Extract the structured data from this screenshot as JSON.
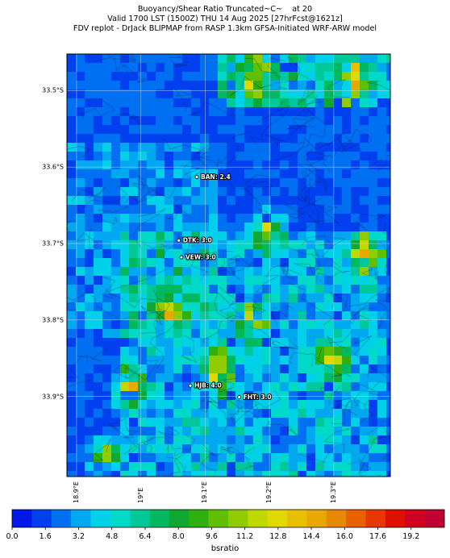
{
  "title": {
    "line1": "Buoyancy/Shear Ratio Truncated~C~    at 20",
    "line2": "Valid 1700 LST (1500Z) THU 14 Aug 2025 [27hrFcst@1621z]",
    "line3": "FDV replot - DrJack BLIPMAP from RASP 1.3km GFSA-Initiated WRF-ARW model"
  },
  "latitude_labels": [
    "33.5°S",
    "33.6°S",
    "33.7°S",
    "33.8°S",
    "33.9°S"
  ],
  "longitude_labels": [
    "18.9°E",
    "19°E",
    "19.1°E",
    "19.2°E",
    "19.3°E"
  ],
  "stations": [
    {
      "name": "BAN: 2.4",
      "lon": 19.087,
      "lat": -33.613
    },
    {
      "name": "DTK: 3.0",
      "lon": 19.059,
      "lat": -33.696
    },
    {
      "name": "VEW: 3.0",
      "lon": 19.063,
      "lat": -33.718
    },
    {
      "name": "HJB: 4.0",
      "lon": 19.077,
      "lat": -33.886
    },
    {
      "name": "FHT: 3.0",
      "lon": 19.153,
      "lat": -33.901
    }
  ],
  "map_extent": {
    "lon_min": 18.885,
    "lon_max": 19.388,
    "lat_max": -33.452,
    "lat_min": -34.005
  },
  "colorbar": {
    "label": "bsratio",
    "tick_labels": [
      "0.0",
      "1.6",
      "3.2",
      "4.8",
      "6.4",
      "8.0",
      "9.6",
      "11.2",
      "12.8",
      "14.4",
      "16.0",
      "17.6",
      "19.2"
    ],
    "range": [
      0,
      20.8
    ],
    "colors": [
      "#0018e8",
      "#0040ee",
      "#0070f2",
      "#00a8f0",
      "#00d0e8",
      "#00d8c8",
      "#00c898",
      "#00b860",
      "#10a830",
      "#30b010",
      "#60c000",
      "#90cc00",
      "#c0d800",
      "#e0d800",
      "#e8c000",
      "#e8a800",
      "#e88800",
      "#e86000",
      "#e83800",
      "#e01000",
      "#d00020",
      "#c00030"
    ]
  }
}
